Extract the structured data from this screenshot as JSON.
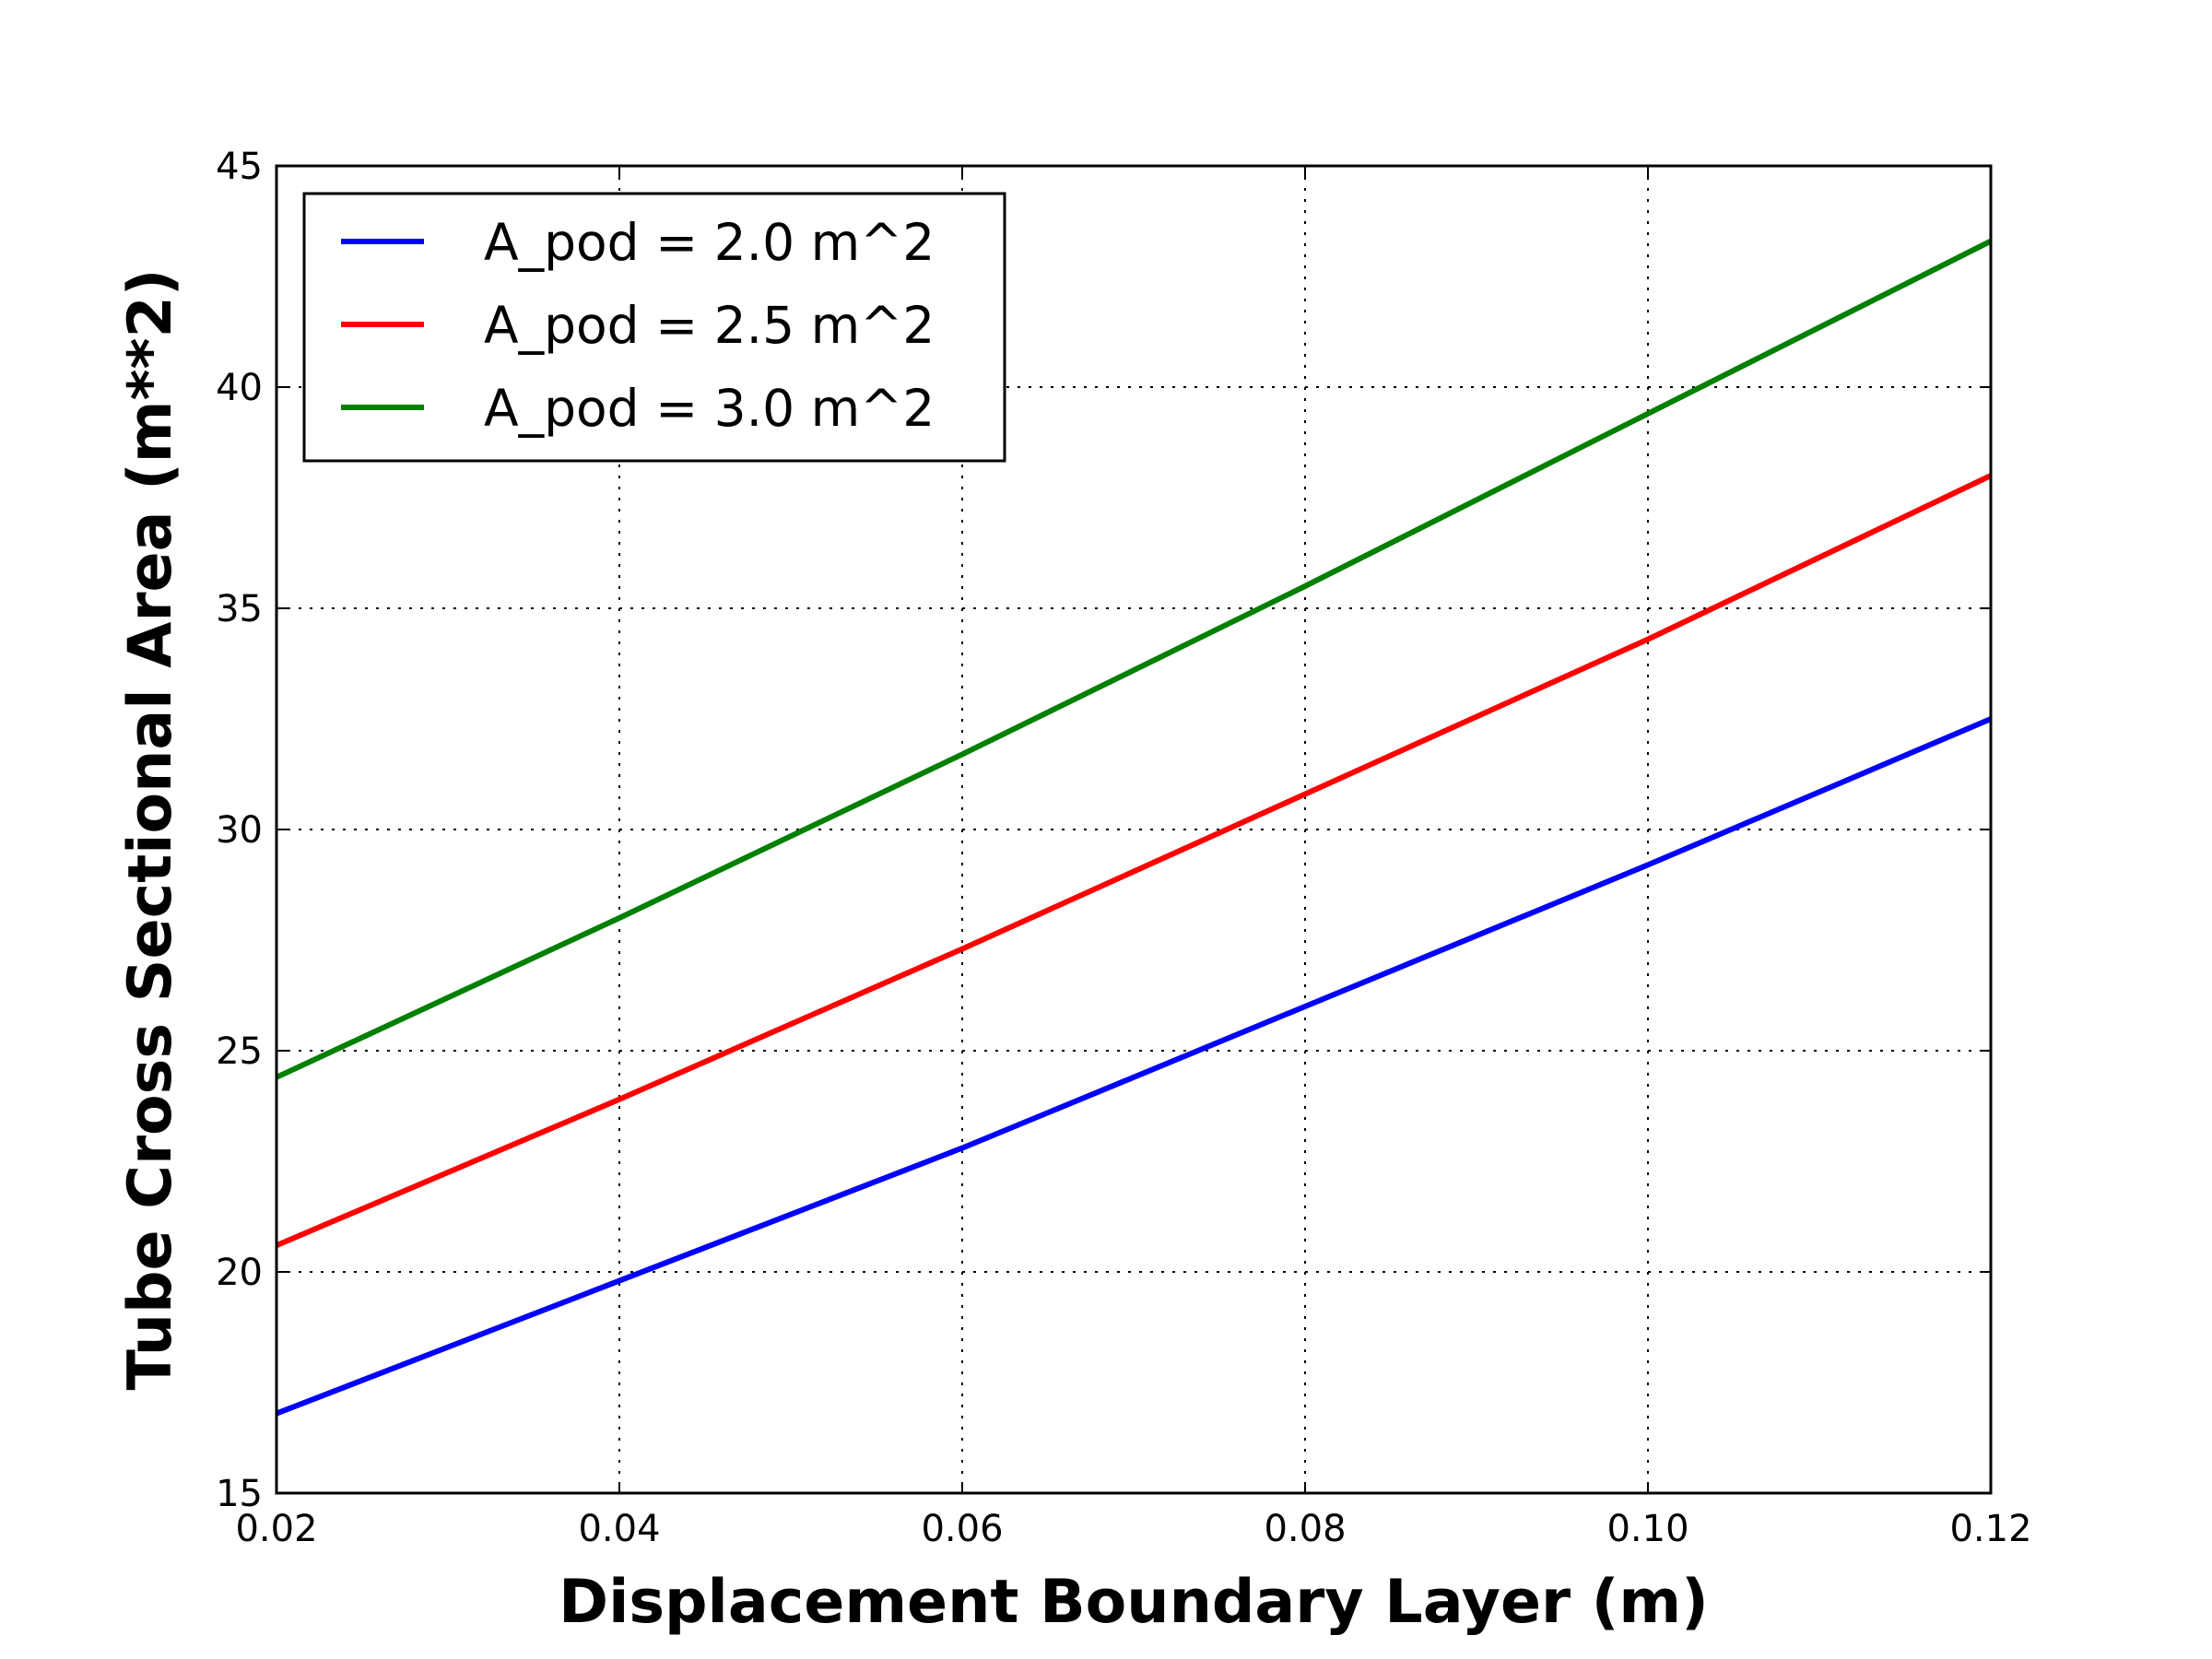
{
  "chart_data": {
    "type": "line",
    "title": "",
    "xlabel": "Displacement Boundary Layer (m)",
    "ylabel": "Tube Cross Sectional Area (m**2)",
    "xlim": [
      0.02,
      0.12
    ],
    "ylim": [
      15,
      45
    ],
    "xticks": [
      0.02,
      0.04,
      0.06,
      0.08,
      0.1,
      0.12
    ],
    "xtick_labels": [
      "0.02",
      "0.04",
      "0.06",
      "0.08",
      "0.10",
      "0.12"
    ],
    "yticks": [
      15,
      20,
      25,
      30,
      35,
      40,
      45
    ],
    "ytick_labels": [
      "15",
      "20",
      "25",
      "30",
      "35",
      "40",
      "45"
    ],
    "grid": true,
    "legend_position": "top-left",
    "series": [
      {
        "name": "A_pod = 2.0 m^2",
        "color": "#0000ff",
        "x": [
          0.02,
          0.04,
          0.06,
          0.08,
          0.1,
          0.12
        ],
        "y": [
          16.8,
          19.8,
          22.8,
          26.0,
          29.2,
          32.5
        ]
      },
      {
        "name": "A_pod = 2.5 m^2",
        "color": "#ff0000",
        "x": [
          0.02,
          0.04,
          0.06,
          0.08,
          0.1,
          0.12
        ],
        "y": [
          20.6,
          23.9,
          27.3,
          30.8,
          34.3,
          38.0
        ]
      },
      {
        "name": "A_pod = 3.0 m^2",
        "color": "#008000",
        "x": [
          0.02,
          0.04,
          0.06,
          0.08,
          0.1,
          0.12
        ],
        "y": [
          24.4,
          28.0,
          31.7,
          35.5,
          39.4,
          43.3
        ]
      }
    ]
  }
}
